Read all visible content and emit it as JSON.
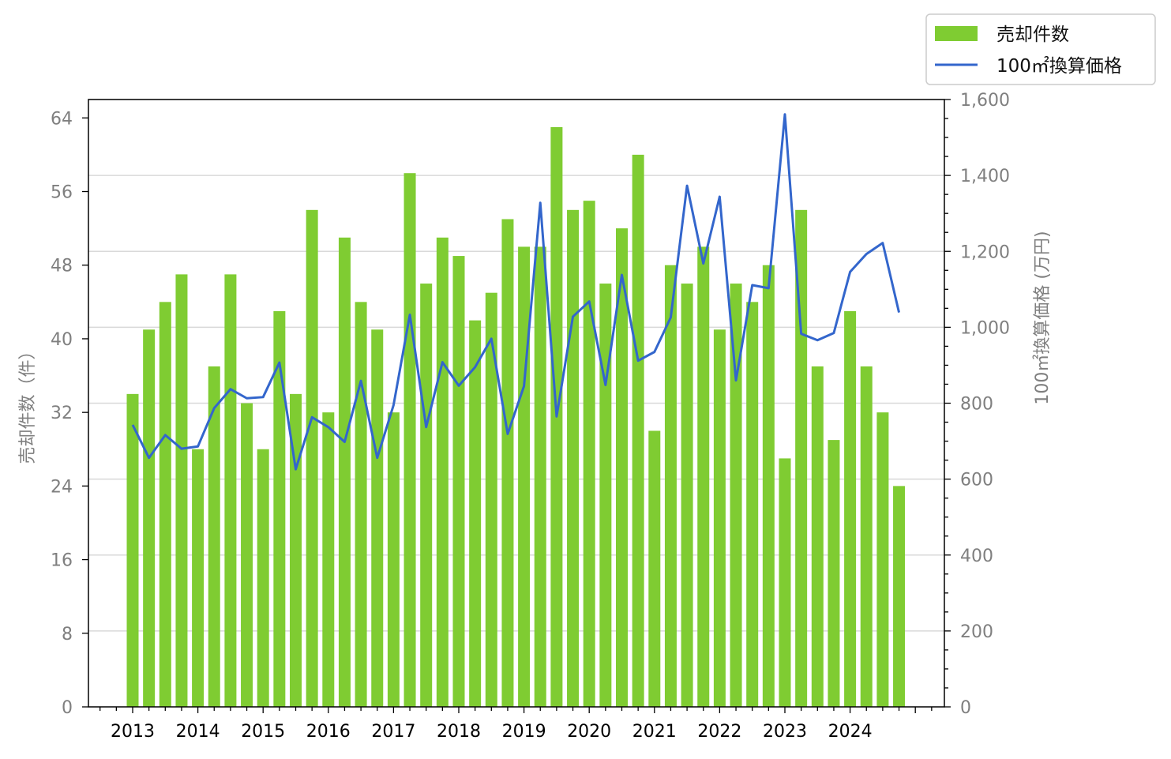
{
  "chart_data": {
    "type": "bar+line",
    "x_axis": {
      "tick_labels": [
        "2013",
        "2014",
        "2015",
        "2016",
        "2017",
        "2018",
        "2019",
        "2020",
        "2021",
        "2022",
        "2023",
        "2024"
      ],
      "periods_per_year": 4
    },
    "left_axis": {
      "label": "売却件数（件）",
      "min": 0,
      "max": 66,
      "ticks": [
        0,
        8,
        16,
        24,
        32,
        40,
        48,
        56,
        64
      ]
    },
    "right_axis": {
      "label": "100㎡換算価格 (万円)",
      "min": 0,
      "max": 1600,
      "ticks": [
        0,
        200,
        400,
        600,
        800,
        1000,
        1200,
        1400,
        1600
      ],
      "tick_labels": [
        "0",
        "200",
        "400",
        "600",
        "800",
        "1,000",
        "1,200",
        "1,400",
        "1,600"
      ]
    },
    "grid": "horizontal, right axis",
    "legend": {
      "position": "top-right, outside plot",
      "entries": [
        "売却件数",
        "100㎡換算価格"
      ]
    },
    "series": [
      {
        "name": "売却件数",
        "type": "bar",
        "axis": "left",
        "color": "#7FCC32",
        "values": [
          34,
          41,
          44,
          47,
          28,
          37,
          47,
          33,
          28,
          43,
          34,
          54,
          32,
          51,
          44,
          41,
          32,
          58,
          46,
          51,
          49,
          42,
          45,
          53,
          50,
          50,
          63,
          54,
          55,
          46,
          52,
          60,
          30,
          48,
          46,
          50,
          41,
          46,
          44,
          48,
          27,
          54,
          37,
          29,
          43,
          37,
          32,
          24
        ]
      },
      {
        "name": "100㎡換算価格",
        "type": "line",
        "axis": "right",
        "color": "#3366CC",
        "values": [
          743,
          656,
          716,
          680,
          686,
          787,
          837,
          813,
          816,
          907,
          626,
          763,
          737,
          698,
          859,
          656,
          795,
          1033,
          737,
          908,
          846,
          895,
          970,
          719,
          845,
          1328,
          765,
          1028,
          1068,
          848,
          1138,
          912,
          935,
          1026,
          1373,
          1168,
          1344,
          860,
          1111,
          1103,
          1561,
          983,
          966,
          985,
          1146,
          1193,
          1222,
          1039
        ]
      }
    ]
  }
}
